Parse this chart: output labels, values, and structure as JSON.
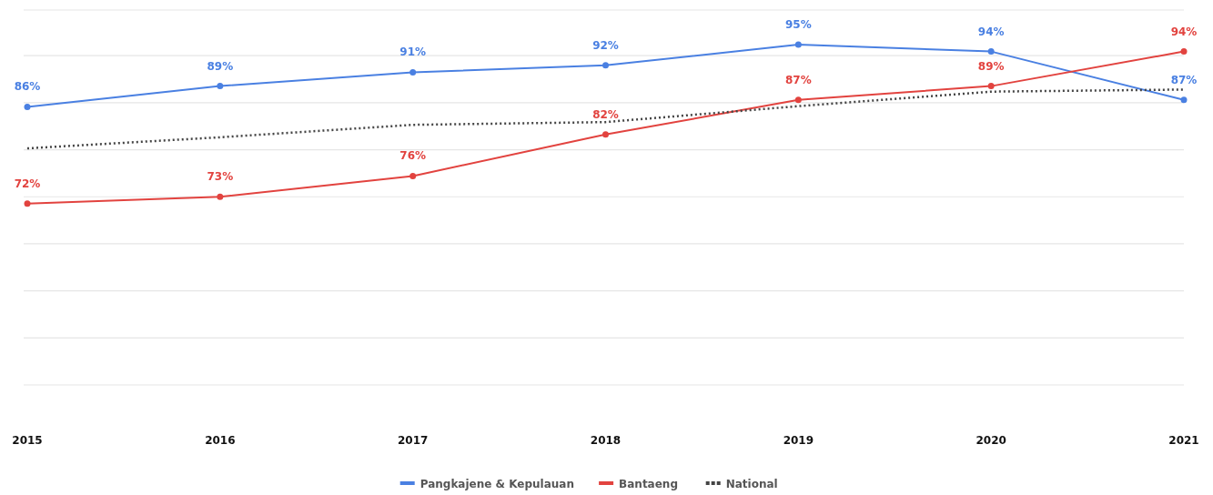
{
  "chart_data": {
    "type": "line",
    "categories": [
      "2015",
      "2016",
      "2017",
      "2018",
      "2019",
      "2020",
      "2021"
    ],
    "series": [
      {
        "name": "Pangkajene & Kepulauan",
        "color": "#4a80e2",
        "values": [
          86,
          89,
          91,
          92,
          95,
          94,
          87
        ],
        "value_labels": [
          "86%",
          "89%",
          "91%",
          "92%",
          "95%",
          "94%",
          "87%"
        ],
        "marker": "circle",
        "line_style": "solid"
      },
      {
        "name": "Bantaeng",
        "color": "#e2433f",
        "values": [
          72,
          73,
          76,
          82,
          87,
          89,
          94
        ],
        "value_labels": [
          "72%",
          "73%",
          "76%",
          "82%",
          "87%",
          "89%",
          "94%"
        ],
        "marker": "circle",
        "line_style": "solid"
      },
      {
        "name": "National",
        "color": "#444444",
        "values": [
          80,
          81.6,
          83.4,
          83.8,
          86.1,
          88.2,
          88.5
        ],
        "marker": "none",
        "line_style": "dotted"
      }
    ],
    "ylim": [
      45.8,
      100
    ],
    "yticks": [
      {
        "value": 45.8,
        "label": null
      },
      {
        "value": 52.6,
        "label": null
      },
      {
        "value": 59.4,
        "label": null
      },
      {
        "value": 66.2,
        "label": null
      },
      {
        "value": 73,
        "label": null
      },
      {
        "value": 79.8,
        "label": null
      },
      {
        "value": 86.6,
        "label": null
      },
      {
        "value": 93.4,
        "label": null
      },
      {
        "value": 100,
        "label": null
      }
    ],
    "tick_labels": "x",
    "grid": "y",
    "legend": "bottom"
  }
}
